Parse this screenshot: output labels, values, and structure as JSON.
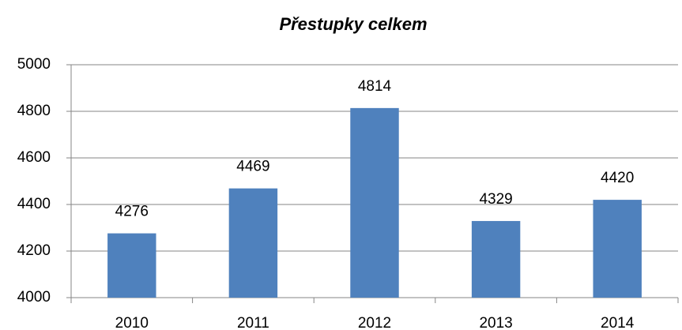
{
  "chart_data": {
    "type": "bar",
    "title": "Přestupky celkem",
    "categories": [
      "2010",
      "2011",
      "2012",
      "2013",
      "2014"
    ],
    "values": [
      4276,
      4469,
      4814,
      4329,
      4420
    ],
    "color": "#4f81bd",
    "ylim": [
      4000,
      5000
    ],
    "yticks": [
      4000,
      4200,
      4400,
      4600,
      4800,
      5000
    ],
    "grid": true
  }
}
